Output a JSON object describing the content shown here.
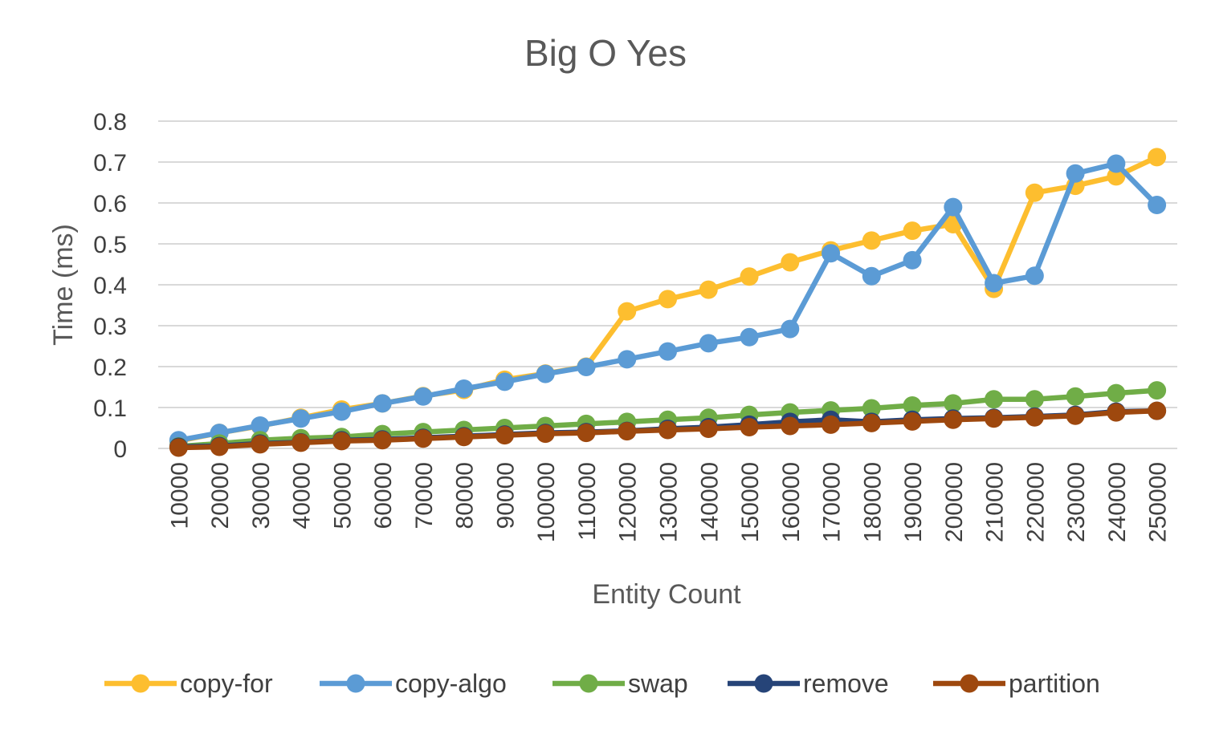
{
  "chart_data": {
    "type": "line",
    "title": "Big O Yes",
    "xlabel": "Entity Count",
    "ylabel": "Time (ms)",
    "ylim": [
      0,
      0.8
    ],
    "y_ticks": [
      "0",
      "0.1",
      "0.2",
      "0.3",
      "0.4",
      "0.5",
      "0.6",
      "0.7",
      "0.8"
    ],
    "grid": true,
    "legend_position": "bottom",
    "categories": [
      "10000",
      "20000",
      "30000",
      "40000",
      "50000",
      "60000",
      "70000",
      "80000",
      "90000",
      "100000",
      "110000",
      "120000",
      "130000",
      "140000",
      "150000",
      "160000",
      "170000",
      "180000",
      "190000",
      "200000",
      "210000",
      "220000",
      "230000",
      "240000",
      "250000"
    ],
    "series": [
      {
        "name": "copy-for",
        "color": "#FDBE2F",
        "values": [
          0.018,
          0.038,
          0.055,
          0.075,
          0.095,
          0.11,
          0.128,
          0.143,
          0.168,
          0.183,
          0.2,
          0.335,
          0.365,
          0.388,
          0.42,
          0.455,
          0.484,
          0.508,
          0.532,
          0.548,
          0.39,
          0.625,
          0.642,
          0.665,
          0.712
        ]
      },
      {
        "name": "copy-algo",
        "color": "#5B9BD5",
        "values": [
          0.02,
          0.038,
          0.056,
          0.073,
          0.09,
          0.11,
          0.127,
          0.146,
          0.163,
          0.182,
          0.199,
          0.218,
          0.237,
          0.257,
          0.272,
          0.292,
          0.477,
          0.421,
          0.46,
          0.59,
          0.404,
          0.422,
          0.672,
          0.696,
          0.595
        ]
      },
      {
        "name": "swap",
        "color": "#70AD47",
        "values": [
          0.005,
          0.012,
          0.02,
          0.025,
          0.028,
          0.035,
          0.04,
          0.045,
          0.05,
          0.055,
          0.06,
          0.065,
          0.07,
          0.075,
          0.082,
          0.088,
          0.093,
          0.098,
          0.105,
          0.11,
          0.12,
          0.12,
          0.127,
          0.135,
          0.142
        ]
      },
      {
        "name": "remove",
        "color": "#264478",
        "values": [
          0.004,
          0.006,
          0.012,
          0.015,
          0.02,
          0.022,
          0.026,
          0.03,
          0.034,
          0.038,
          0.04,
          0.043,
          0.048,
          0.052,
          0.058,
          0.065,
          0.07,
          0.065,
          0.07,
          0.073,
          0.075,
          0.078,
          0.082,
          0.09,
          0.092
        ]
      },
      {
        "name": "partition",
        "color": "#9E480E",
        "values": [
          0.002,
          0.004,
          0.01,
          0.014,
          0.018,
          0.02,
          0.024,
          0.028,
          0.032,
          0.036,
          0.038,
          0.042,
          0.045,
          0.048,
          0.052,
          0.055,
          0.058,
          0.062,
          0.066,
          0.07,
          0.073,
          0.076,
          0.08,
          0.088,
          0.092
        ]
      }
    ]
  }
}
